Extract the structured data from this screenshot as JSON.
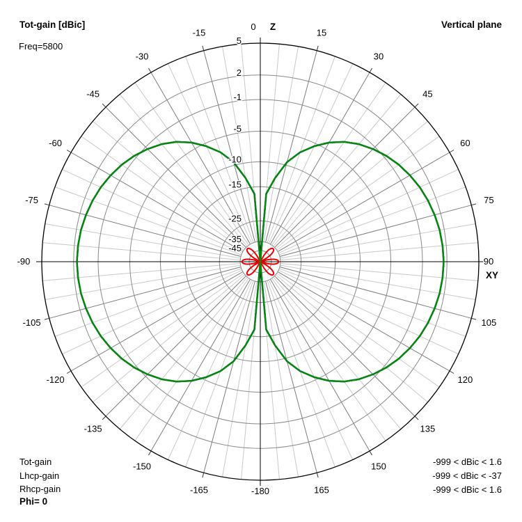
{
  "header": {
    "title": "Tot-gain [dBic]",
    "freq": "Freq=5800",
    "plane": "Vertical plane"
  },
  "legend": {
    "series": [
      {
        "label": "Tot-gain",
        "range": "-999 < dBic < 1.6",
        "color": "#008B00"
      },
      {
        "label": "Lhcp-gain",
        "range": "-999 < dBic < -37",
        "color": "#EE0000"
      },
      {
        "label": "Rhcp-gain",
        "range": "-999 < dBic < 1.6",
        "color": "#0000EE"
      }
    ],
    "phi": "Phi= 0"
  },
  "chart_data": {
    "type": "polar",
    "title": "Tot-gain [dBic]",
    "plane": "Vertical plane",
    "frequency_mhz": 5800,
    "phi_deg": 0,
    "units": "dBic",
    "axes": {
      "top_tick": "0",
      "top_name": "Z",
      "right_name": "XY",
      "right_tick": "90",
      "bottom_tick": "-180"
    },
    "rings": [
      {
        "label": "5",
        "db": 5,
        "f": 1.0
      },
      {
        "label": "2",
        "db": 2,
        "f": 0.854
      },
      {
        "label": "-1",
        "db": -1,
        "f": 0.742
      },
      {
        "label": "-5",
        "db": -5,
        "f": 0.597
      },
      {
        "label": "-10",
        "db": -10,
        "f": 0.457
      },
      {
        "label": "-15",
        "db": -15,
        "f": 0.343
      },
      {
        "label": "-25",
        "db": -25,
        "f": 0.187
      },
      {
        "label": "-35",
        "db": -35,
        "f": 0.092
      },
      {
        "label": "-45",
        "db": -45,
        "f": 0.051
      }
    ],
    "floor_db": -57,
    "angle_minor_step_deg": 5,
    "angle_major_step_deg": 15,
    "angle_labels": [
      {
        "label": "15",
        "deg": 15
      },
      {
        "label": "30",
        "deg": 30
      },
      {
        "label": "45",
        "deg": 45
      },
      {
        "label": "60",
        "deg": 60
      },
      {
        "label": "75",
        "deg": 75
      },
      {
        "label": "90",
        "deg": 90,
        "r": 328
      },
      {
        "label": "105",
        "deg": 105
      },
      {
        "label": "120",
        "deg": 120
      },
      {
        "label": "135",
        "deg": 135
      },
      {
        "label": "150",
        "deg": 150
      },
      {
        "label": "165",
        "deg": 165
      },
      {
        "label": "-180",
        "deg": 180,
        "r": 330
      },
      {
        "label": "-165",
        "deg": 195
      },
      {
        "label": "-150",
        "deg": 210
      },
      {
        "label": "-135",
        "deg": 225
      },
      {
        "label": "-120",
        "deg": 240
      },
      {
        "label": "-105",
        "deg": 255
      },
      {
        "label": "-90",
        "deg": 270
      },
      {
        "label": "-75",
        "deg": 285
      },
      {
        "label": "-60",
        "deg": 300
      },
      {
        "label": "-45",
        "deg": 315
      },
      {
        "label": "-30",
        "deg": 330
      },
      {
        "label": "-15",
        "deg": 345
      }
    ],
    "series": [
      {
        "name": "Tot-gain",
        "color": "#008B00",
        "width": 2.4,
        "step_deg": 5,
        "symmetric": true,
        "max_dbic": 1.6,
        "gain_dbic_0_to_180": [
          -999,
          -17,
          -13,
          -9.5,
          -7.3,
          -5.5,
          -4.1,
          -3.0,
          -2.1,
          -1.35,
          -0.7,
          -0.15,
          0.3,
          0.7,
          1.0,
          1.25,
          1.45,
          1.55,
          1.6,
          1.55,
          1.45,
          1.25,
          1.0,
          0.7,
          0.3,
          -0.15,
          -0.7,
          -1.35,
          -2.1,
          -3.0,
          -4.1,
          -5.5,
          -7.3,
          -9.5,
          -13,
          -17,
          -999
        ]
      },
      {
        "name": "Lhcp-gain",
        "color": "#EE0000",
        "width": 2,
        "step_deg": 2.5,
        "symmetric": true,
        "max_dbic": -37,
        "gain_dbic_0_to_180": [
          -999,
          -999,
          -999,
          -999,
          -999,
          -999,
          -999,
          -999,
          -999,
          -999,
          -67.4,
          -55.6,
          -49,
          -44.7,
          -41.6,
          -39.5,
          -38.1,
          -37.3,
          -37,
          -37.3,
          -38.1,
          -39.5,
          -41.6,
          -44.7,
          -49,
          -55.6,
          -67.4,
          -999,
          -67.4,
          -55.6,
          -49,
          -44.7,
          -41.6,
          -39.5,
          -38.1,
          -37.3,
          -37,
          -37.3,
          -38.1,
          -39.5,
          -41.6,
          -44.7,
          -49,
          -55.6,
          -67.4,
          -999,
          -67.4,
          -55.6,
          -49,
          -44.7,
          -41.6,
          -39.5,
          -38.1,
          -37.3,
          -37,
          -37.3,
          -38.1,
          -39.5,
          -41.6,
          -44.7,
          -49,
          -55.6,
          -67.4,
          -999,
          -999,
          -999,
          -999,
          -999,
          -999,
          -999,
          -999,
          -999,
          -999
        ]
      },
      {
        "name": "Rhcp-gain",
        "color": "#0000EE",
        "width": 2.4,
        "step_deg": 5,
        "symmetric": true,
        "max_dbic": 1.6,
        "gain_dbic_0_to_180": [
          -999,
          -17,
          -13,
          -9.5,
          -7.3,
          -5.5,
          -4.1,
          -3.0,
          -2.1,
          -1.35,
          -0.7,
          -0.15,
          0.3,
          0.7,
          1.0,
          1.25,
          1.45,
          1.55,
          1.6,
          1.55,
          1.45,
          1.25,
          1.0,
          0.7,
          0.3,
          -0.15,
          -0.7,
          -1.35,
          -2.1,
          -3.0,
          -4.1,
          -5.5,
          -7.3,
          -9.5,
          -13,
          -17,
          -999
        ]
      }
    ],
    "draw_order": [
      2,
      1,
      0
    ]
  }
}
